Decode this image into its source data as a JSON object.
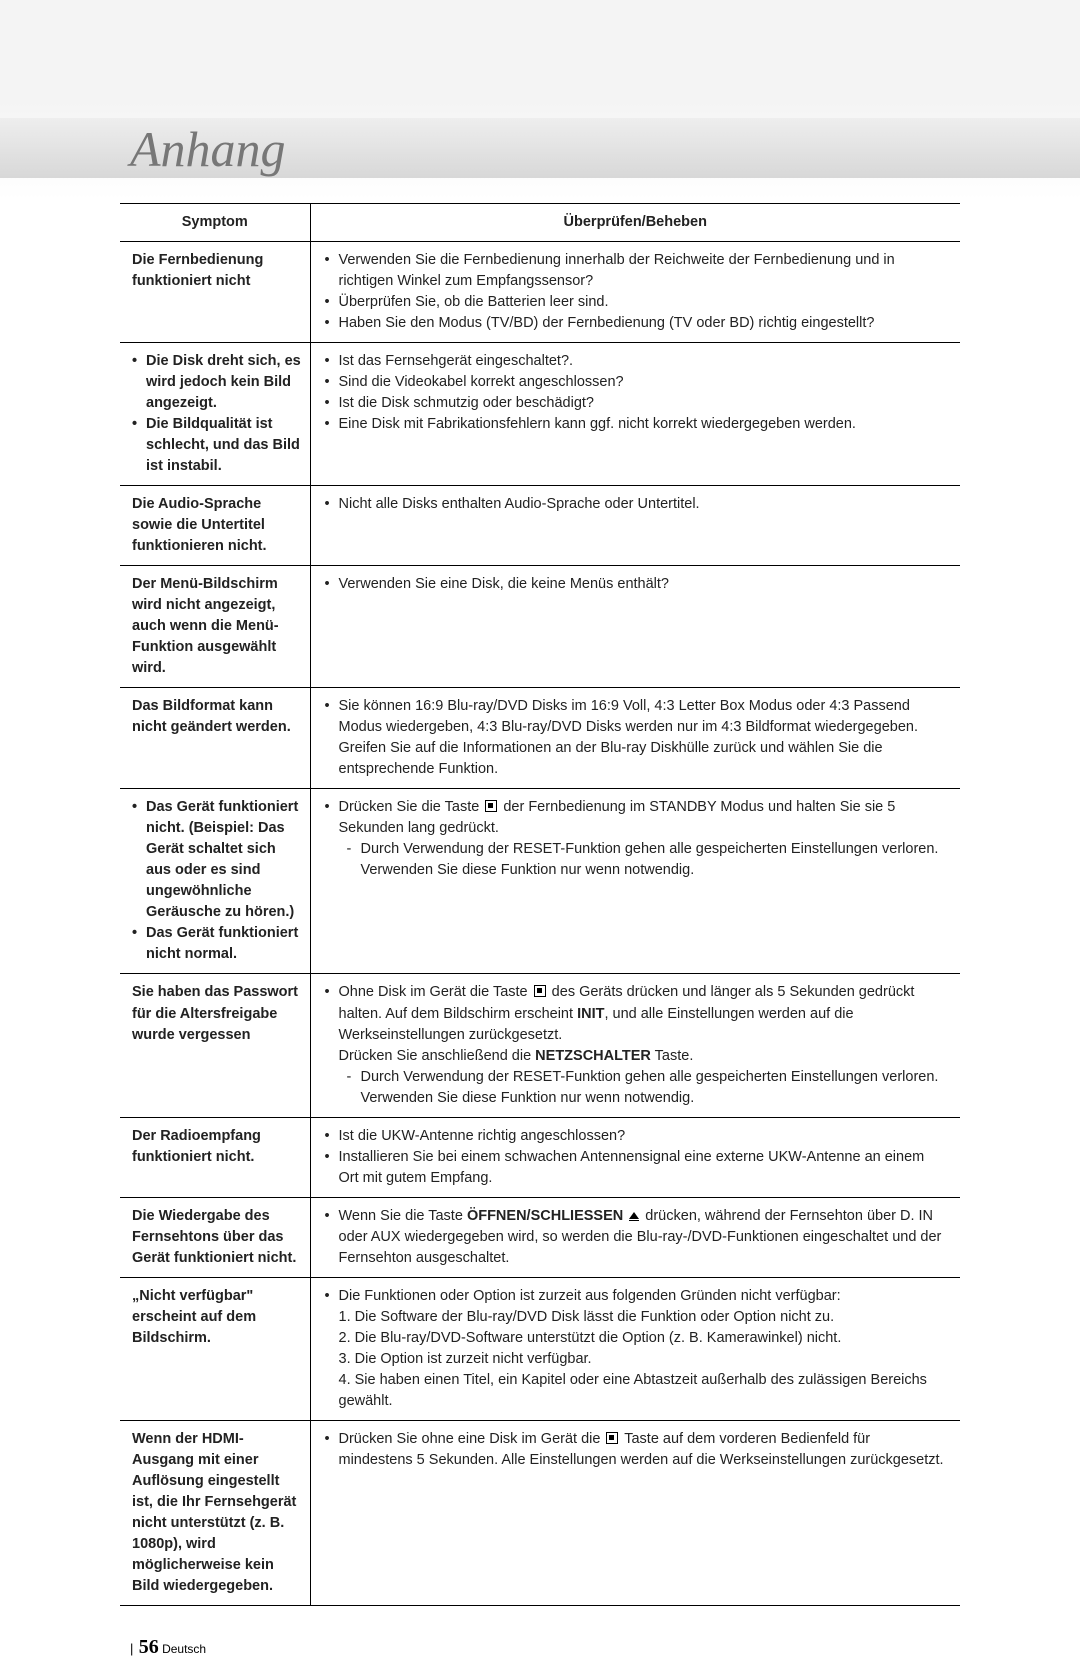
{
  "page": {
    "title": "Anhang",
    "footer_page": "56",
    "footer_lang": "Deutsch"
  },
  "table": {
    "header": {
      "symptom": "Symptom",
      "check": "Überprüfen/Beheben"
    },
    "rows": [
      {
        "symptom_plain": "Die Fernbedienung funktioniert nicht",
        "checks": [
          "Verwenden Sie die Fernbedienung innerhalb der Reichweite der Fernbedienung und in richtigen Winkel zum Empfangssensor?",
          "Überprüfen Sie, ob die Batterien leer sind.",
          "Haben Sie den Modus (TV/BD) der Fernbedienung (TV oder BD) richtig eingestellt?"
        ]
      },
      {
        "symptom_bullets": [
          "Die Disk dreht sich, es wird jedoch kein Bild angezeigt.",
          "Die Bildqualität ist schlecht, und das Bild ist instabil."
        ],
        "checks": [
          "Ist das Fernsehgerät eingeschaltet?.",
          "Sind die Videokabel korrekt angeschlossen?",
          "Ist die Disk schmutzig oder beschädigt?",
          "Eine Disk mit Fabrikationsfehlern kann ggf. nicht korrekt wiedergegeben werden."
        ]
      },
      {
        "symptom_plain": "Die Audio-Sprache sowie die Untertitel funktionieren nicht.",
        "checks": [
          "Nicht alle Disks enthalten Audio-Sprache oder Untertitel."
        ]
      },
      {
        "symptom_plain": "Der Menü-Bildschirm wird nicht angezeigt, auch wenn die Menü-Funktion ausgewählt wird.",
        "checks": [
          "Verwenden Sie eine Disk, die keine Menüs enthält?"
        ]
      },
      {
        "symptom_plain": "Das Bildformat kann nicht geändert werden.",
        "checks": [
          "Sie können 16:9 Blu-ray/DVD Disks im 16:9 Voll, 4:3 Letter Box Modus oder 4:3 Passend Modus wiedergeben, 4:3 Blu-ray/DVD Disks werden nur im 4:3 Bildformat wiedergegeben. Greifen Sie auf die Informationen an der Blu-ray Diskhülle zurück und wählen Sie die entsprechende Funktion."
        ]
      },
      {
        "symptom_bullets": [
          "Das Gerät funktioniert nicht. (Beispiel: Das Gerät schaltet sich aus oder es sind ungewöhnliche Geräusche zu hören.)",
          "Das Gerät funktioniert nicht normal."
        ],
        "check_html": "stop_reset"
      },
      {
        "symptom_plain": "Sie haben das Passwort für die Altersfreigabe wurde vergessen",
        "check_html": "init_reset"
      },
      {
        "symptom_plain": "Der Radioempfang funktioniert nicht.",
        "checks": [
          "Ist die UKW-Antenne richtig angeschlossen?",
          "Installieren Sie bei einem schwachen Antennensignal eine externe UKW-Antenne an einem Ort mit gutem Empfang."
        ]
      },
      {
        "symptom_plain": "Die Wiedergabe des Fernsehtons über das Gerät funktioniert nicht.",
        "check_html": "eject"
      },
      {
        "symptom_plain": "„Nicht verfügbar\" erscheint auf dem Bildschirm.",
        "check_html": "not_available"
      },
      {
        "symptom_plain": "Wenn der HDMI-Ausgang mit einer Auflösung eingestellt ist, die Ihr Fernsehgerät nicht unterstützt (z. B. 1080p), wird möglicherweise kein Bild wiedergegeben.",
        "check_html": "hdmi"
      }
    ]
  },
  "strings": {
    "stop_reset_a": "Drücken Sie die Taste ",
    "stop_reset_b": " der Fernbedienung im STANDBY Modus und halten Sie sie 5 Sekunden lang gedrückt.",
    "reset_warn": "Durch Verwendung der RESET-Funktion gehen alle gespeicherten Einstellungen verloren. Verwenden Sie diese Funktion nur wenn notwendig.",
    "init_a": "Ohne Disk im Gerät die Taste ",
    "init_b": " des Geräts drücken und länger als 5 Sekunden gedrückt halten. Auf dem Bildschirm erscheint ",
    "init_bold": "INIT",
    "init_c": ", und alle Einstellungen werden auf die Werkseinstellungen zurückgesetzt.",
    "init_d": "Drücken Sie anschließend die ",
    "init_bold2": "NETZSCHALTER",
    "init_e": " Taste.",
    "eject_a": "Wenn Sie die Taste ",
    "eject_bold": "ÖFFNEN/SCHLIESSEN",
    "eject_b": " drücken, während der Fernsehton über D. IN oder AUX wiedergegeben wird, so werden die Blu-ray-/DVD-Funktionen eingeschaltet und der Fernsehton ausgeschaltet.",
    "na_header": "Die Funktionen oder Option ist zurzeit aus folgenden Gründen nicht verfügbar:",
    "na_1": "1. Die Software der Blu-ray/DVD Disk lässt die Funktion oder Option nicht zu.",
    "na_2": "2. Die Blu-ray/DVD-Software unterstützt die Option (z. B. Kamerawinkel) nicht.",
    "na_3": "3. Die Option ist zurzeit nicht verfügbar.",
    "na_4": "4. Sie haben einen Titel, ein Kapitel oder eine Abtastzeit außerhalb des zulässigen Bereichs gewählt.",
    "hdmi_a": "Drücken Sie ohne eine Disk im Gerät die ",
    "hdmi_b": " Taste auf dem vorderen Bedienfeld für mindestens 5 Sekunden. Alle Einstellungen werden auf die Werkseinstellungen zurückgesetzt."
  }
}
